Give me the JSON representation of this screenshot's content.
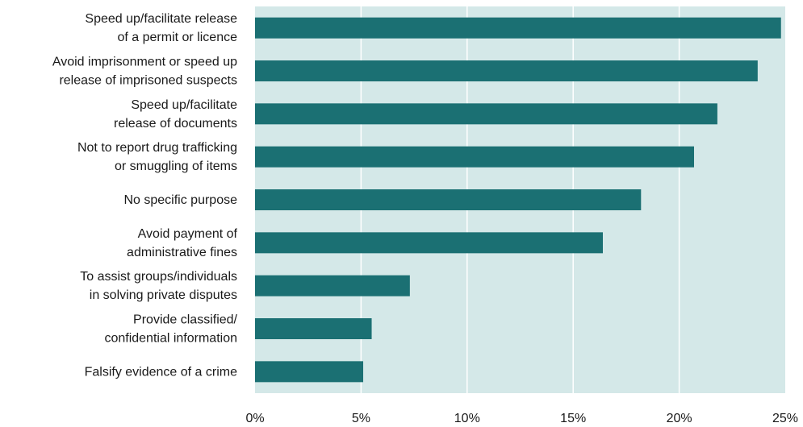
{
  "chart_data": {
    "type": "bar",
    "orientation": "horizontal",
    "categories": [
      [
        "Speed up/facilitate release",
        "of a permit or licence"
      ],
      [
        "Avoid imprisonment or speed up",
        "release of imprisoned suspects"
      ],
      [
        "Speed up/facilitate",
        "release of documents"
      ],
      [
        "Not to report drug trafficking",
        "or smuggling of items"
      ],
      [
        "No specific purpose"
      ],
      [
        "Avoid payment of",
        "administrative fines"
      ],
      [
        "To assist groups/individuals",
        "in solving private disputes"
      ],
      [
        "Provide classified/",
        "confidential information"
      ],
      [
        "Falsify evidence of a crime"
      ]
    ],
    "values": [
      24.8,
      23.7,
      21.8,
      20.7,
      18.2,
      16.4,
      7.3,
      5.5,
      5.1
    ],
    "xlim": [
      0,
      25
    ],
    "x_ticks": [
      "0%",
      "5%",
      "10%",
      "15%",
      "20%",
      "25%"
    ],
    "title": "",
    "xlabel": "",
    "ylabel": "",
    "grid": "vertical",
    "colors": {
      "bar": "#1b7073",
      "plot_bg": "#d4e8e8",
      "grid": "#ffffff"
    }
  }
}
